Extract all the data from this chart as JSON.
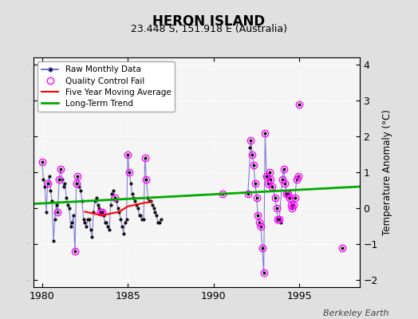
{
  "title": "HERON ISLAND",
  "subtitle": "23.448 S, 151.918 E (Australia)",
  "ylabel": "Temperature Anomaly (°C)",
  "credit": "Berkeley Earth",
  "xlim": [
    1979.5,
    1998.5
  ],
  "ylim": [
    -2.2,
    4.2
  ],
  "yticks": [
    -2,
    -1,
    0,
    1,
    2,
    3,
    4
  ],
  "xticks": [
    1980,
    1985,
    1990,
    1995
  ],
  "bg_color": "#e0e0e0",
  "plot_bg_color": "#f5f5f5",
  "raw_segments": [
    {
      "x": [
        1980.0,
        1980.08,
        1980.17,
        1980.25,
        1980.33,
        1980.42,
        1980.5,
        1980.58,
        1980.67,
        1980.75,
        1980.83,
        1980.92,
        1981.0,
        1981.08,
        1981.17,
        1981.25,
        1981.33,
        1981.42,
        1981.5,
        1981.58,
        1981.67,
        1981.75,
        1981.83,
        1981.92,
        1982.0,
        1982.08,
        1982.17,
        1982.25,
        1982.33,
        1982.42,
        1982.5,
        1982.58,
        1982.67,
        1982.75,
        1982.83,
        1982.92,
        1983.0,
        1983.08,
        1983.17,
        1983.25,
        1983.33,
        1983.42,
        1983.5,
        1983.58,
        1983.67,
        1983.75,
        1983.83,
        1983.92,
        1984.0,
        1984.08,
        1984.17,
        1984.25,
        1984.33,
        1984.42,
        1984.5,
        1984.58,
        1984.67,
        1984.75,
        1984.83,
        1984.92,
        1985.0,
        1985.08,
        1985.17,
        1985.25,
        1985.33,
        1985.42,
        1985.5,
        1985.58,
        1985.67,
        1985.75,
        1985.83,
        1985.92,
        1986.0,
        1986.08,
        1986.17,
        1986.25,
        1986.33,
        1986.42,
        1986.5,
        1986.58,
        1986.67,
        1986.75,
        1986.83,
        1986.92
      ],
      "y": [
        1.3,
        0.8,
        0.6,
        -0.1,
        0.7,
        0.9,
        0.5,
        0.2,
        -0.9,
        -0.3,
        0.1,
        -0.1,
        0.8,
        1.1,
        0.8,
        0.6,
        0.7,
        0.3,
        0.1,
        0.0,
        -0.5,
        -0.4,
        -0.2,
        -1.2,
        0.7,
        0.9,
        0.6,
        0.5,
        0.2,
        -0.3,
        -0.4,
        -0.5,
        -0.3,
        -0.3,
        -0.6,
        -0.8,
        -0.1,
        0.2,
        0.3,
        0.1,
        0.0,
        -0.1,
        -0.1,
        -0.2,
        -0.4,
        -0.4,
        -0.5,
        -0.6,
        0.1,
        0.4,
        0.5,
        0.3,
        0.2,
        0.0,
        -0.1,
        -0.3,
        -0.5,
        -0.7,
        -0.4,
        -0.3,
        1.5,
        1.0,
        0.7,
        0.4,
        0.3,
        0.2,
        0.1,
        0.0,
        -0.2,
        -0.2,
        -0.3,
        -0.3,
        1.4,
        0.8,
        0.3,
        0.2,
        0.2,
        0.1,
        0.0,
        -0.1,
        -0.2,
        -0.4,
        -0.4,
        -0.3
      ]
    },
    {
      "x": [
        1992.0,
        1992.17,
        1992.25,
        1992.33,
        1992.42,
        1992.5,
        1992.58,
        1992.67,
        1992.75,
        1992.83,
        1992.92,
        1993.0,
        1993.08,
        1993.17,
        1993.25,
        1993.33,
        1993.42,
        1993.58,
        1993.67,
        1993.75,
        1993.83,
        1994.0,
        1994.08,
        1994.17,
        1994.25,
        1994.5,
        1994.67,
        1994.75,
        1994.83,
        1994.92
      ],
      "y": [
        0.4,
        1.9,
        1.5,
        1.2,
        0.7,
        0.3,
        -0.2,
        -0.4,
        -0.5,
        -1.1,
        -1.8,
        2.1,
        0.9,
        0.7,
        1.0,
        0.8,
        0.6,
        0.3,
        0.0,
        -0.3,
        -0.3,
        0.8,
        1.1,
        0.7,
        0.4,
        0.1,
        0.1,
        0.3,
        0.8,
        0.9
      ]
    }
  ],
  "scatter_x": [
    1990.5,
    1992.08,
    1993.92,
    1994.33,
    1994.42,
    1994.58,
    1995.0,
    1997.5
  ],
  "scatter_y": [
    0.4,
    1.7,
    -0.4,
    0.4,
    0.3,
    0.0,
    2.9,
    -1.1
  ],
  "qc_fail_x": [
    1980.0,
    1980.33,
    1980.92,
    1981.0,
    1981.08,
    1981.92,
    1982.0,
    1982.08,
    1983.42,
    1983.5,
    1984.25,
    1985.0,
    1985.08,
    1986.0,
    1986.08,
    1990.5,
    1992.0,
    1992.17,
    1992.25,
    1992.33,
    1992.42,
    1992.5,
    1992.58,
    1992.67,
    1992.75,
    1992.83,
    1992.92,
    1993.0,
    1993.08,
    1993.17,
    1993.25,
    1993.33,
    1993.42,
    1993.58,
    1993.67,
    1993.75,
    1993.83,
    1994.0,
    1994.08,
    1994.17,
    1994.25,
    1994.33,
    1994.42,
    1994.5,
    1994.58,
    1994.67,
    1994.75,
    1994.83,
    1994.92,
    1995.0,
    1997.5
  ],
  "qc_fail_y": [
    1.3,
    0.7,
    -0.1,
    0.8,
    1.1,
    -1.2,
    0.7,
    0.9,
    -0.1,
    -0.1,
    0.3,
    1.5,
    1.0,
    1.4,
    0.8,
    0.4,
    0.4,
    1.9,
    1.5,
    1.2,
    0.7,
    0.3,
    -0.2,
    -0.4,
    -0.5,
    -1.1,
    -1.8,
    2.1,
    0.9,
    0.7,
    1.0,
    0.8,
    0.6,
    0.3,
    0.0,
    -0.3,
    -0.3,
    0.8,
    1.1,
    0.7,
    0.4,
    0.4,
    0.3,
    0.1,
    0.0,
    0.1,
    0.3,
    0.8,
    0.9,
    2.9,
    -1.1
  ],
  "ma5_x": [
    1982.5,
    1983.0,
    1983.5,
    1984.0,
    1984.5,
    1985.0,
    1985.5,
    1986.0,
    1986.4
  ],
  "ma5_y": [
    -0.1,
    -0.15,
    -0.2,
    -0.15,
    -0.1,
    0.05,
    0.1,
    0.15,
    0.18
  ],
  "trend_x": [
    1979.5,
    1998.5
  ],
  "trend_y": [
    0.12,
    0.6
  ],
  "line_color": "#5555cc",
  "dot_color": "#111111",
  "qc_color": "#ff00ff",
  "ma5_color": "red",
  "trend_color": "#00aa00"
}
